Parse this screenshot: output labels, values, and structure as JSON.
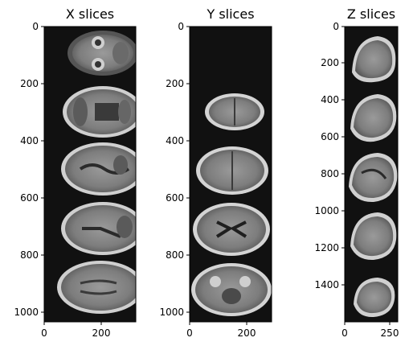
{
  "panels": [
    {
      "title": "X slices",
      "xticks": [
        "0",
        "200"
      ],
      "yticks": [
        "0",
        "200",
        "400",
        "600",
        "800",
        "1000"
      ],
      "slices": [
        {
          "view": "axial-eyes"
        },
        {
          "view": "axial-low"
        },
        {
          "view": "axial-mid"
        },
        {
          "view": "axial-mid"
        },
        {
          "view": "axial-high"
        }
      ]
    },
    {
      "title": "Y slices",
      "xticks": [
        "0",
        "200"
      ],
      "yticks": [
        "0",
        "200",
        "400",
        "600",
        "800",
        "1000"
      ],
      "slices": [
        {
          "view": "blank"
        },
        {
          "view": "top-small"
        },
        {
          "view": "top-medium"
        },
        {
          "view": "ventricles"
        },
        {
          "view": "axial-base"
        }
      ]
    },
    {
      "title": "Z slices",
      "xticks": [
        "0",
        "250"
      ],
      "yticks": [
        "0",
        "200",
        "400",
        "600",
        "800",
        "1000",
        "1200",
        "1400"
      ],
      "slices": [
        {
          "view": "sagittal"
        },
        {
          "view": "sagittal"
        },
        {
          "view": "sagittal-mid"
        },
        {
          "view": "sagittal"
        },
        {
          "view": "sagittal"
        }
      ]
    }
  ],
  "colors": {
    "background": "#111111",
    "tissue": "#8a8a8a",
    "bright": "#d8d8d8",
    "dark": "#2a2a2a"
  }
}
